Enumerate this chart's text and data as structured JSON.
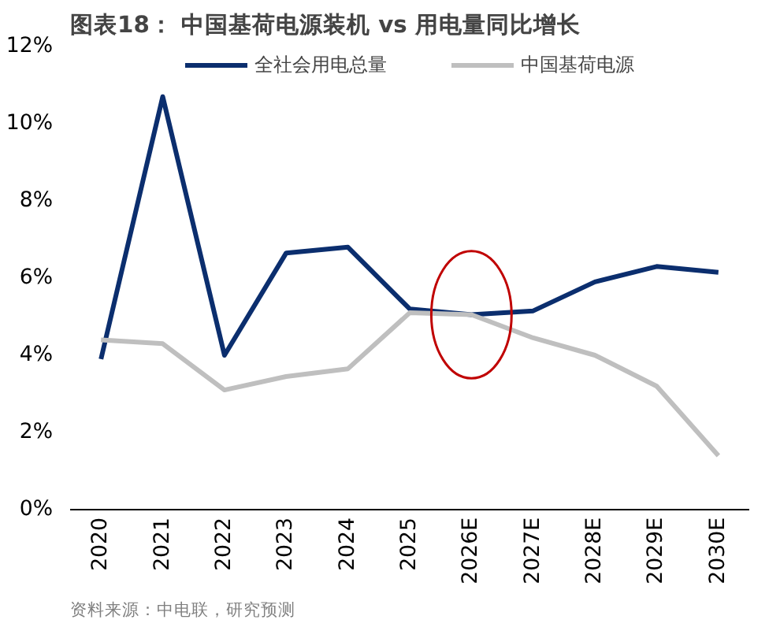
{
  "chart_data": {
    "type": "line",
    "title": "图表18：  中国基荷电源装机 vs 用电量同比增长",
    "categories": [
      "2020",
      "2021",
      "2022",
      "2023",
      "2024",
      "2025",
      "2026E",
      "2027E",
      "2028E",
      "2029E",
      "2030E"
    ],
    "series": [
      {
        "name": "全社会用电总量",
        "color": "#0b2e6e",
        "values": [
          3.9,
          10.7,
          4.0,
          6.65,
          6.8,
          5.2,
          5.05,
          5.15,
          5.9,
          6.3,
          6.15
        ]
      },
      {
        "name": "中国基荷电源",
        "color": "#bfbfbf",
        "values": [
          4.4,
          4.3,
          3.1,
          3.45,
          3.65,
          5.1,
          5.05,
          4.45,
          4.0,
          3.2,
          1.4
        ]
      }
    ],
    "ylim": [
      0,
      12
    ],
    "yticks": [
      {
        "value": 0,
        "label": "0%"
      },
      {
        "value": 2,
        "label": "2%"
      },
      {
        "value": 4,
        "label": "4%"
      },
      {
        "value": 6,
        "label": "6%"
      },
      {
        "value": 8,
        "label": "8%"
      },
      {
        "value": 10,
        "label": "10%"
      },
      {
        "value": 12,
        "label": "12%"
      }
    ],
    "grid": false,
    "legend": "top",
    "marker": "none",
    "line_style": "solid",
    "annotations": [
      "资料来源：中电联，研究预测"
    ]
  }
}
